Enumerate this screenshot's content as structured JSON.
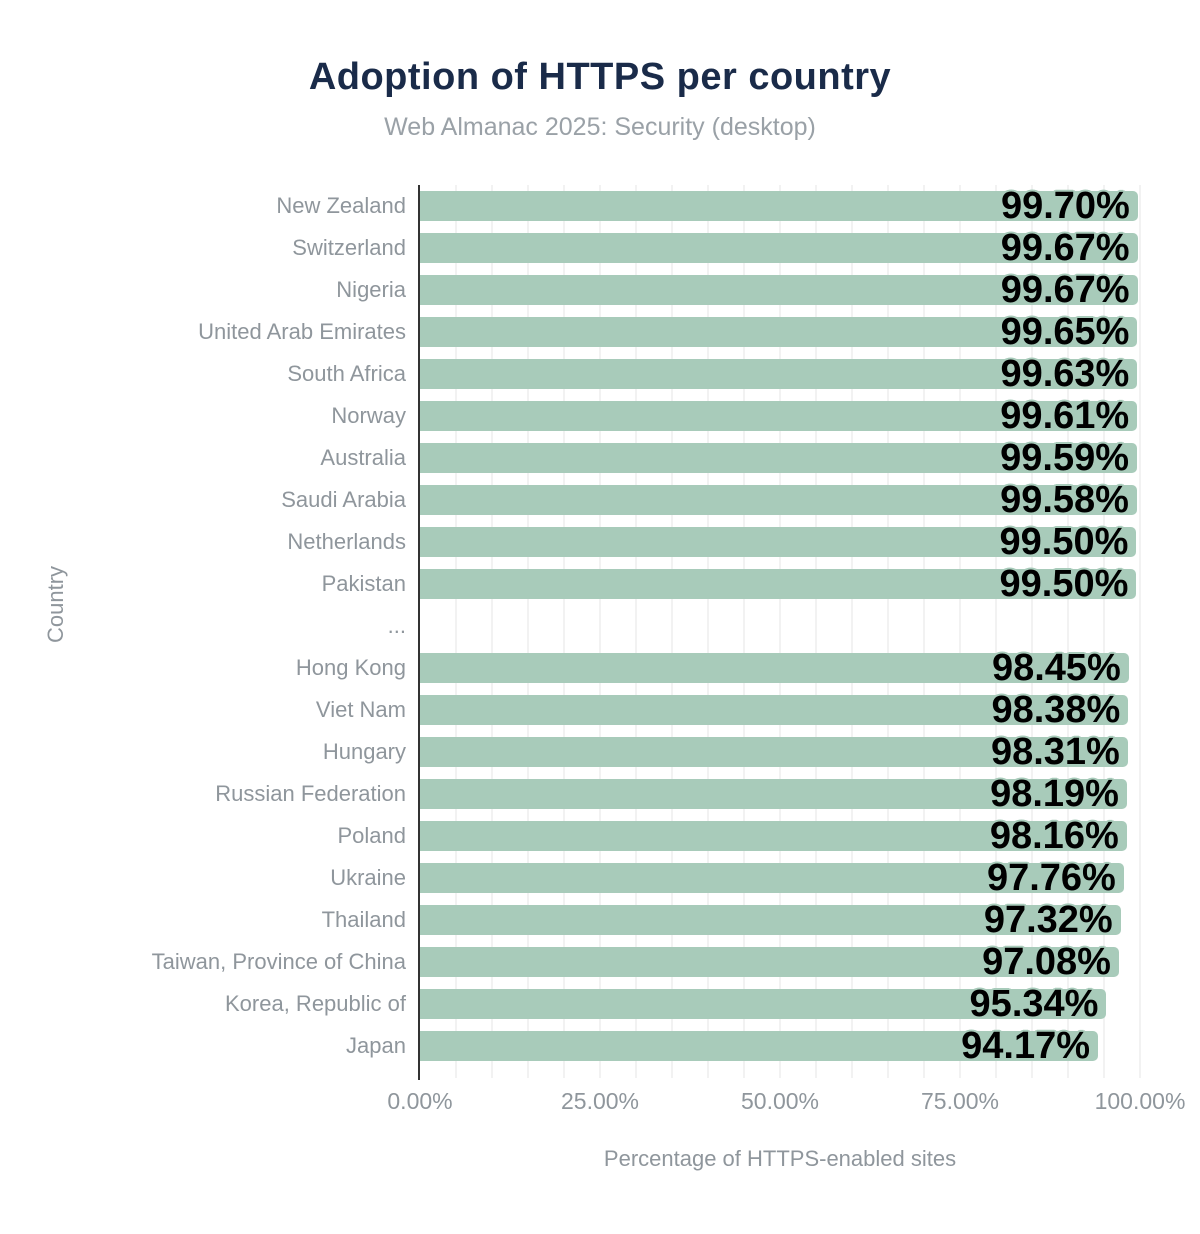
{
  "chart": {
    "title": "Adoption of HTTPS per country",
    "subtitle": "Web Almanac 2025: Security (desktop)",
    "xlabel": "Percentage of HTTPS-enabled sites",
    "ylabel": "Country"
  },
  "chart_data": {
    "type": "bar",
    "orientation": "horizontal",
    "title": "Adoption of HTTPS per country",
    "subtitle": "Web Almanac 2025: Security (desktop)",
    "xlabel": "Percentage of HTTPS-enabled sites",
    "ylabel": "Country",
    "categories": [
      "New Zealand",
      "Switzerland",
      "Nigeria",
      "United Arab Emirates",
      "South Africa",
      "Norway",
      "Australia",
      "Saudi Arabia",
      "Netherlands",
      "Pakistan",
      "...",
      "Hong Kong",
      "Viet Nam",
      "Hungary",
      "Russian Federation",
      "Poland",
      "Ukraine",
      "Thailand",
      "Taiwan, Province of China",
      "Korea, Republic of",
      "Japan"
    ],
    "values": [
      99.7,
      99.67,
      99.67,
      99.65,
      99.63,
      99.61,
      99.59,
      99.58,
      99.5,
      99.5,
      null,
      98.45,
      98.38,
      98.31,
      98.19,
      98.16,
      97.76,
      97.32,
      97.08,
      95.34,
      94.17
    ],
    "value_labels": [
      "99.70%",
      "99.67%",
      "99.67%",
      "99.65%",
      "99.63%",
      "99.61%",
      "99.59%",
      "99.58%",
      "99.50%",
      "99.50%",
      "",
      "98.45%",
      "98.38%",
      "98.31%",
      "98.19%",
      "98.16%",
      "97.76%",
      "97.32%",
      "97.08%",
      "95.34%",
      "94.17%"
    ],
    "xlim": [
      0,
      100
    ],
    "x_ticks": [
      "0.00%",
      "25.00%",
      "50.00%",
      "75.00%",
      "100.00%"
    ],
    "x_tick_values": [
      0,
      25,
      50,
      75,
      100
    ],
    "grid": "vertical minor gridlines every 5%",
    "grid_step": 5,
    "legend": "none",
    "colors": {
      "bar": "#a8cbba",
      "title": "#1a2b49",
      "subtitle": "#9aa1a7",
      "axis_label": "#8f969c",
      "value_label": "#000000",
      "axis_line": "#333333",
      "gridline": "#f2f2f2",
      "background": "#ffffff"
    }
  }
}
